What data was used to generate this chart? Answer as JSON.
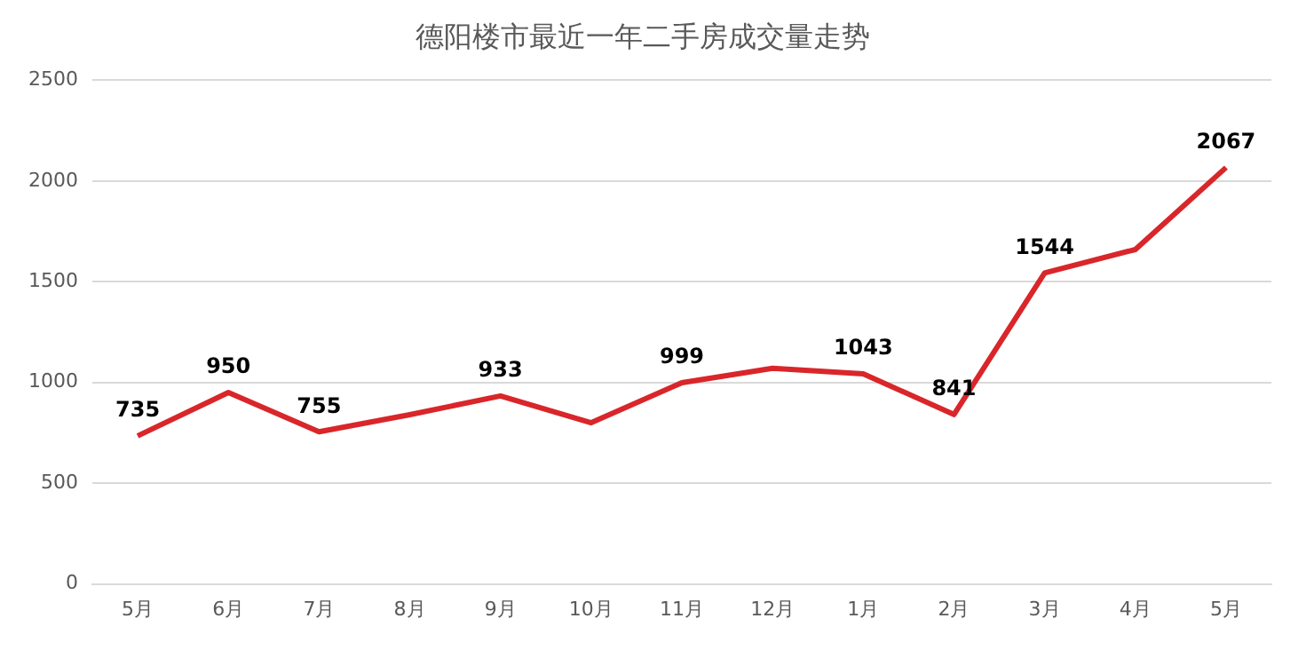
{
  "chart_data": {
    "type": "line",
    "title": "德阳楼市最近一年二手房成交量走势",
    "categories": [
      "5月",
      "6月",
      "7月",
      "8月",
      "9月",
      "10月",
      "11月",
      "12月",
      "1月",
      "2月",
      "3月",
      "4月",
      "5月"
    ],
    "series": [
      {
        "color": "#d9262a",
        "values": [
          735,
          950,
          755,
          840,
          933,
          800,
          999,
          1070,
          1043,
          841,
          1544,
          1660,
          2067
        ],
        "value_labels": [
          "735",
          "950",
          "755",
          null,
          "933",
          null,
          "999",
          null,
          "1043",
          "841",
          "1544",
          null,
          "2067"
        ]
      }
    ],
    "ylim": [
      0,
      2500
    ],
    "yticks": [
      0,
      500,
      1000,
      1500,
      2000,
      2500
    ],
    "grid": "y",
    "legend": false,
    "marker": "none",
    "line_style": "solid"
  }
}
